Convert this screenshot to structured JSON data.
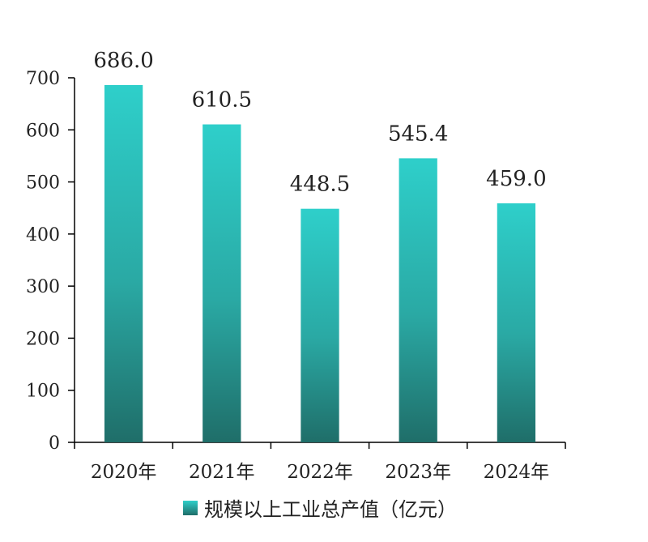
{
  "chart_data": {
    "type": "bar",
    "categories": [
      "2020年",
      "2021年",
      "2022年",
      "2023年",
      "2024年"
    ],
    "values": [
      686.0,
      610.5,
      448.5,
      545.4,
      459.0
    ],
    "data_labels": [
      "686.0",
      "610.5",
      "448.5",
      "545.4",
      "459.0"
    ],
    "yticks": [
      "0",
      "100",
      "200",
      "300",
      "400",
      "500",
      "600",
      "700"
    ],
    "ylim": [
      0,
      700
    ],
    "series": [
      {
        "name": "规模以上工业总产值（亿元）",
        "values": [
          686.0,
          610.5,
          448.5,
          545.4,
          459.0
        ]
      }
    ],
    "legend_position": "bottom",
    "grid": false,
    "bar_gradient": [
      "#2ecfca",
      "#1f6e69"
    ],
    "axis_color": "#000000"
  }
}
